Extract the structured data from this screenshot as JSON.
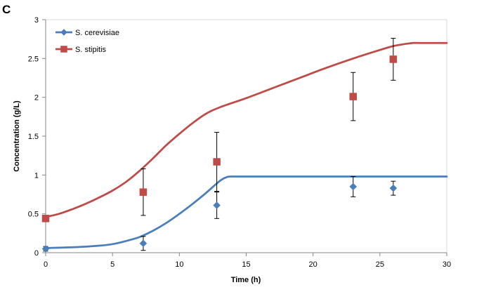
{
  "panel_label": "C",
  "chart_data": {
    "type": "line",
    "title": "",
    "xlabel": "Time (h)",
    "ylabel": "Concentration (g/L)",
    "xlim": [
      0,
      30
    ],
    "ylim": [
      0,
      3
    ],
    "x_ticks": [
      0,
      5,
      10,
      15,
      20,
      25,
      30
    ],
    "y_ticks": [
      0,
      0.5,
      1,
      1.5,
      2,
      2.5,
      3
    ],
    "x_tick_labels": [
      "0",
      "5",
      "10",
      "15",
      "20",
      "25",
      "30"
    ],
    "y_tick_labels": [
      "0",
      "0.5",
      "1",
      "1.5",
      "2",
      "2.5",
      "3"
    ],
    "grid": false,
    "legend_position": "top-left",
    "series": [
      {
        "name": "S. cerevisiae",
        "color": "#4a7ebb",
        "marker": "diamond",
        "points": [
          {
            "x": 0,
            "y": 0.05,
            "err": 0.03
          },
          {
            "x": 7.3,
            "y": 0.12,
            "err": 0.09
          },
          {
            "x": 12.8,
            "y": 0.61,
            "err": 0.17
          },
          {
            "x": 23,
            "y": 0.85,
            "err": 0.13
          },
          {
            "x": 26,
            "y": 0.83,
            "err": 0.09
          }
        ],
        "fit": {
          "x": [
            0,
            2,
            4,
            5,
            6,
            7,
            8,
            9,
            10,
            11,
            12,
            13,
            13.5,
            14,
            16,
            20,
            25,
            30
          ],
          "y": [
            0.06,
            0.07,
            0.09,
            0.11,
            0.15,
            0.2,
            0.28,
            0.38,
            0.5,
            0.63,
            0.77,
            0.92,
            0.97,
            0.98,
            0.98,
            0.98,
            0.98,
            0.98
          ]
        }
      },
      {
        "name": "S. stipitis",
        "color": "#be4b48",
        "marker": "square",
        "points": [
          {
            "x": 0,
            "y": 0.44,
            "err": 0.04
          },
          {
            "x": 7.3,
            "y": 0.78,
            "err": 0.3
          },
          {
            "x": 12.8,
            "y": 1.17,
            "err": 0.38
          },
          {
            "x": 23,
            "y": 2.01,
            "err": 0.31
          },
          {
            "x": 26,
            "y": 2.49,
            "err": 0.27
          }
        ],
        "fit": {
          "x": [
            0,
            1,
            2,
            3,
            4,
            5,
            6,
            7,
            8,
            9,
            10,
            11,
            12,
            13,
            15,
            17,
            19,
            21,
            23,
            25,
            26,
            27,
            27.5,
            28,
            30
          ],
          "y": [
            0.46,
            0.5,
            0.56,
            0.63,
            0.71,
            0.8,
            0.91,
            1.05,
            1.21,
            1.38,
            1.53,
            1.67,
            1.79,
            1.87,
            1.99,
            2.12,
            2.25,
            2.38,
            2.5,
            2.61,
            2.66,
            2.69,
            2.7,
            2.7,
            2.7
          ]
        }
      }
    ]
  }
}
